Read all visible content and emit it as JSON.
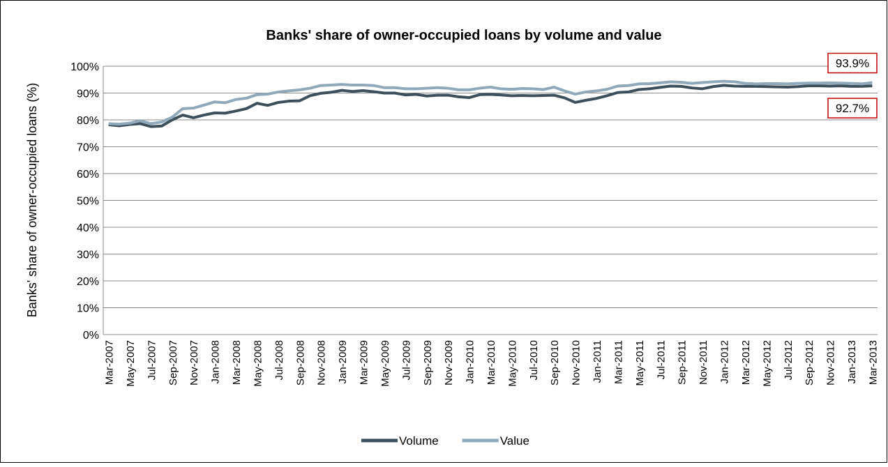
{
  "chart_data": {
    "type": "line",
    "title": "Banks' share of owner-occupied loans by volume and value",
    "y_label": "Banks' share of owner-occupied loans (%)",
    "categories": [
      "Mar-2007",
      null,
      "May-2007",
      null,
      "Jul-2007",
      null,
      "Sep-2007",
      null,
      "Nov-2007",
      null,
      "Jan-2008",
      null,
      "Mar-2008",
      null,
      "May-2008",
      null,
      "Jul-2008",
      null,
      "Sep-2008",
      null,
      "Nov-2008",
      null,
      "Jan-2009",
      null,
      "Mar-2009",
      null,
      "May-2009",
      null,
      "Jul-2009",
      null,
      "Sep-2009",
      null,
      "Nov-2009",
      null,
      "Jan-2010",
      null,
      "Mar-2010",
      null,
      "May-2010",
      null,
      "Jul-2010",
      null,
      "Sep-2010",
      null,
      "Nov-2010",
      null,
      "Jan-2011",
      null,
      "Mar-2011",
      null,
      "May-2011",
      null,
      "Jul-2011",
      null,
      "Sep-2011",
      null,
      "Nov-2011",
      null,
      "Jan-2012",
      null,
      "Mar-2012",
      null,
      "May-2012",
      null,
      "Jul-2012",
      null,
      "Sep-2012",
      null,
      "Nov-2012",
      null,
      "Jan-2013",
      null,
      "Mar-2013"
    ],
    "series": [
      {
        "name": "Volume",
        "color": "#3e4f5c",
        "values": [
          78.2,
          77.8,
          78.3,
          78.6,
          77.5,
          77.7,
          80.0,
          81.8,
          80.8,
          81.8,
          82.6,
          82.5,
          83.3,
          84.2,
          86.2,
          85.4,
          86.5,
          87.0,
          87.1,
          89.0,
          89.9,
          90.3,
          91.0,
          90.6,
          90.9,
          90.5,
          90.0,
          90.0,
          89.3,
          89.5,
          88.9,
          89.2,
          89.2,
          88.6,
          88.3,
          89.4,
          89.5,
          89.3,
          89.0,
          89.1,
          89.0,
          89.1,
          89.2,
          88.2,
          86.5,
          87.3,
          88.0,
          89.0,
          90.2,
          90.4,
          91.3,
          91.6,
          92.1,
          92.6,
          92.5,
          91.9,
          91.6,
          92.4,
          92.9,
          92.6,
          92.5,
          92.5,
          92.4,
          92.3,
          92.2,
          92.4,
          92.7,
          92.7,
          92.6,
          92.7,
          92.5,
          92.5,
          92.7
        ],
        "value_labels": [
          null,
          null,
          null,
          null,
          null,
          null,
          null,
          null,
          null,
          null,
          null,
          null,
          null,
          null,
          null,
          null,
          null,
          null,
          null,
          null,
          null,
          null,
          null,
          null,
          null,
          null,
          null,
          null,
          null,
          null,
          null,
          null,
          null,
          null,
          null,
          null,
          null,
          null,
          null,
          null,
          null,
          null,
          null,
          null,
          null,
          null,
          null,
          null,
          null,
          null,
          null,
          null,
          null,
          null,
          null,
          null,
          null,
          null,
          null,
          null,
          null,
          null,
          null,
          null,
          null,
          null,
          null,
          null,
          null,
          null,
          null,
          null,
          "92.7%"
        ]
      },
      {
        "name": "Value",
        "color": "#8fa9bb",
        "values": [
          78.6,
          78.4,
          78.8,
          79.7,
          78.6,
          79.2,
          81.0,
          84.2,
          84.4,
          85.5,
          86.7,
          86.4,
          87.6,
          88.1,
          89.4,
          89.6,
          90.4,
          90.8,
          91.2,
          91.8,
          92.8,
          93.0,
          93.2,
          93.0,
          93.0,
          92.8,
          92.0,
          92.0,
          91.6,
          91.6,
          91.8,
          92.0,
          91.8,
          91.2,
          91.2,
          91.8,
          92.2,
          91.6,
          91.4,
          91.7,
          91.6,
          91.3,
          92.2,
          90.8,
          89.6,
          90.4,
          90.8,
          91.4,
          92.6,
          92.8,
          93.4,
          93.5,
          93.8,
          94.2,
          94.0,
          93.6,
          93.9,
          94.2,
          94.4,
          94.2,
          93.6,
          93.4,
          93.5,
          93.5,
          93.4,
          93.6,
          93.7,
          93.7,
          93.8,
          93.7,
          93.6,
          93.4,
          93.9
        ],
        "value_labels": [
          null,
          null,
          null,
          null,
          null,
          null,
          null,
          null,
          null,
          null,
          null,
          null,
          null,
          null,
          null,
          null,
          null,
          null,
          null,
          null,
          null,
          null,
          null,
          null,
          null,
          null,
          null,
          null,
          null,
          null,
          null,
          null,
          null,
          null,
          null,
          null,
          null,
          null,
          null,
          null,
          null,
          null,
          null,
          null,
          null,
          null,
          null,
          null,
          null,
          null,
          null,
          null,
          null,
          null,
          null,
          null,
          null,
          null,
          null,
          null,
          null,
          null,
          null,
          null,
          null,
          null,
          null,
          null,
          null,
          null,
          null,
          null,
          "93.9%"
        ]
      }
    ],
    "ylim": [
      0,
      100
    ],
    "yticks": [
      {
        "value": 0,
        "label": "0%"
      },
      {
        "value": 10,
        "label": "10%"
      },
      {
        "value": 20,
        "label": "20%"
      },
      {
        "value": 30,
        "label": "30%"
      },
      {
        "value": 40,
        "label": "40%"
      },
      {
        "value": 50,
        "label": "50%"
      },
      {
        "value": 60,
        "label": "60%"
      },
      {
        "value": 70,
        "label": "70%"
      },
      {
        "value": 80,
        "label": "80%"
      },
      {
        "value": 90,
        "label": "90%"
      },
      {
        "value": 100,
        "label": "100%"
      }
    ],
    "grid": true,
    "legend": "bottom"
  }
}
